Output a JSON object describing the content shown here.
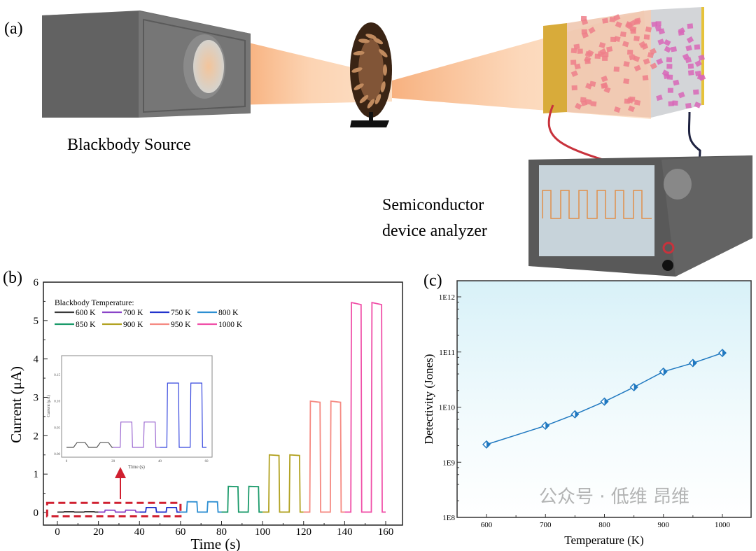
{
  "figure": {
    "panel_a_label": "(a)",
    "panel_b_label": "(b)",
    "panel_c_label": "(c)",
    "blackbody_label": "Blackbody Source",
    "analyzer_label_line1": "Semiconductor",
    "analyzer_label_line2": "device analyzer",
    "watermark": "公众号 · 低维 昂维"
  },
  "chart_data": [
    {
      "id": "b",
      "type": "line",
      "title": "",
      "xlabel": "Time (s)",
      "ylabel": "Current (μA)",
      "xlim": [
        -8,
        165
      ],
      "ylim": [
        -0.12,
        6
      ],
      "xticks": [
        0,
        20,
        40,
        60,
        80,
        100,
        120,
        140,
        160
      ],
      "yticks": [
        0,
        1,
        2,
        3,
        4,
        5,
        6
      ],
      "legend_title": "Blackbody Temperature:",
      "legend_position": "top-left",
      "baseline": 0.01,
      "series": [
        {
          "name": "600 K",
          "color": "#3a3a3a",
          "t_start": 0,
          "peak": 0.02
        },
        {
          "name": "700 K",
          "color": "#8a44c8",
          "t_start": 20,
          "peak": 0.06
        },
        {
          "name": "750 K",
          "color": "#2233cc",
          "t_start": 40,
          "peak": 0.13
        },
        {
          "name": "800 K",
          "color": "#2d8fd2",
          "t_start": 60,
          "peak": 0.28
        },
        {
          "name": "850 K",
          "color": "#1a9a6a",
          "t_start": 80,
          "peak": 0.68
        },
        {
          "name": "900 K",
          "color": "#b2a222",
          "t_start": 100,
          "peak": 1.5
        },
        {
          "name": "950 K",
          "color": "#f58a82",
          "t_start": 120,
          "peak": 2.9
        },
        {
          "name": "1000 K",
          "color": "#f050a8",
          "t_start": 140,
          "peak": 5.47
        }
      ],
      "pulse_on_intervals_relative_s": [
        [
          3,
          8
        ],
        [
          13,
          18
        ]
      ],
      "inset": {
        "xlabel": "Time (s)",
        "ylabel": "Current (μA)",
        "xlim": [
          0,
          60
        ],
        "ylim": [
          0,
          0.17
        ],
        "xticks": [
          0,
          20,
          40,
          60
        ],
        "yticks": [
          "0.00",
          "0.05",
          "0.10",
          "0.15"
        ],
        "baseline": 0.012,
        "peaks": [
          0.021,
          0.06,
          0.134
        ],
        "colors": [
          "#555555",
          "#9a66d0",
          "#3344dd"
        ]
      },
      "highlight_box": {
        "t_range": [
          -5,
          60
        ],
        "current_range": [
          -0.1,
          0.25
        ],
        "color": "#d02030"
      }
    },
    {
      "id": "c",
      "type": "line",
      "xlabel": "Temperature (K)",
      "ylabel": "Detectivity (Jones)",
      "yscale": "log",
      "xlim": [
        550,
        1050
      ],
      "ylim_log10": [
        8,
        12.3
      ],
      "xticks": [
        600,
        700,
        800,
        900,
        1000
      ],
      "yticks": [
        "1E8",
        "1E9",
        "1E10",
        "1E11",
        "1E12"
      ],
      "color": "#1f78c0",
      "marker": "half-filled diamond",
      "x": [
        600,
        700,
        750,
        800,
        850,
        900,
        950,
        1000
      ],
      "y": [
        2100000000.0,
        4600000000.0,
        7400000000.0,
        12600000000.0,
        23000000000.0,
        44000000000.0,
        63000000000.0,
        96000000000.0
      ]
    }
  ]
}
